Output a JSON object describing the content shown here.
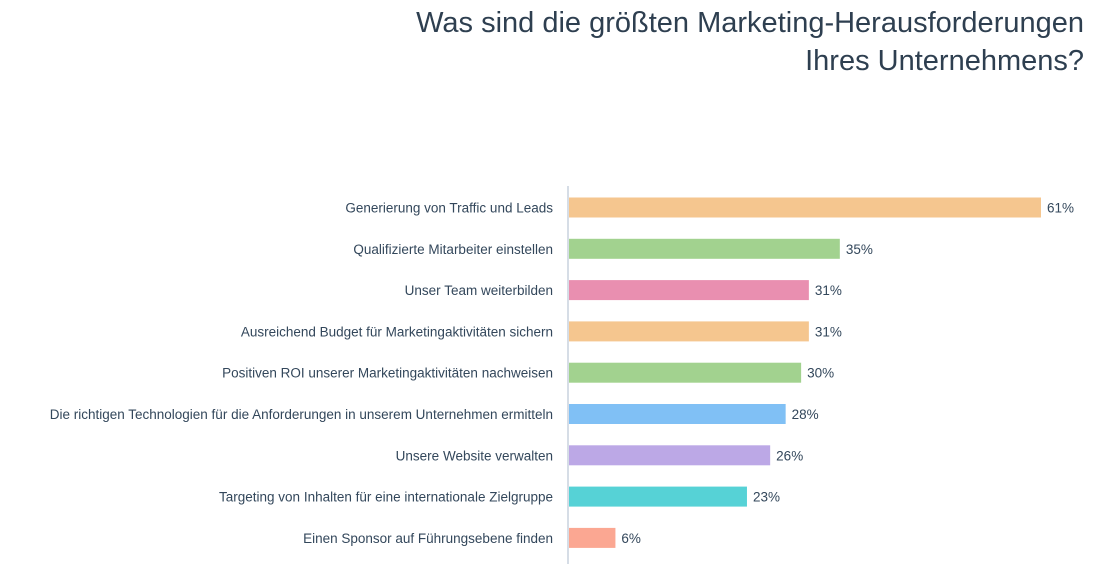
{
  "chart_data": {
    "type": "bar",
    "orientation": "horizontal",
    "title": "Was sind die größten Marketing-Herausforderungen Ihres Unternehmens?",
    "title_lines": [
      "Was sind die größten Marketing-Herausforderungen",
      "Ihres Unternehmens?"
    ],
    "xlabel": "",
    "ylabel": "",
    "xlim": [
      0,
      61
    ],
    "grid": false,
    "legend": "none",
    "value_suffix": "%",
    "categories": [
      "Generierung von Traffic und Leads",
      "Qualifizierte Mitarbeiter einstellen",
      "Unser Team weiterbilden",
      "Ausreichend Budget für Marketingaktivitäten sichern",
      "Positiven ROI unserer Marketingaktivitäten nachweisen",
      "Die richtigen Technologien für die Anforderungen in unserem Unternehmen ermitteln",
      "Unsere Website verwalten",
      "Targeting von Inhalten für eine internationale Zielgruppe",
      "Einen Sponsor auf Führungsebene finden"
    ],
    "values": [
      61,
      35,
      31,
      31,
      30,
      28,
      26,
      23,
      6
    ],
    "colors": [
      "#f5c68f",
      "#a2d28f",
      "#e98fb0",
      "#f5c68f",
      "#a2d28f",
      "#80c0f5",
      "#bca8e6",
      "#56d2d6",
      "#fba792"
    ],
    "axis_color": "#d6dde6"
  }
}
